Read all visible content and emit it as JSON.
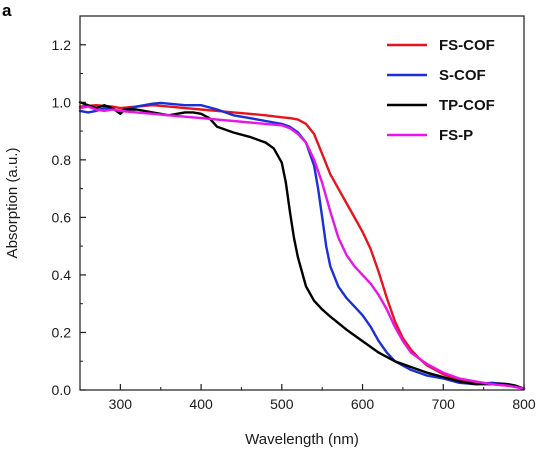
{
  "panel_label": "a",
  "chart_data": {
    "type": "line",
    "xlabel": "Wavelength (nm)",
    "ylabel": "Absorption (a.u.)",
    "xlim": [
      250,
      800
    ],
    "ylim": [
      0,
      1.3
    ],
    "xticks": [
      300,
      400,
      500,
      600,
      700,
      800
    ],
    "yticks": [
      0.0,
      0.2,
      0.4,
      0.6,
      0.8,
      1.0,
      1.2
    ],
    "xtick_labels": [
      "300",
      "400",
      "500",
      "600",
      "700",
      "800"
    ],
    "ytick_labels": [
      "0.0",
      "0.2",
      "0.4",
      "0.6",
      "0.8",
      "1.0",
      "1.2"
    ],
    "grid": false,
    "legend_position": "top-right",
    "series": [
      {
        "name": "FS-COF",
        "color": "#e8141c",
        "x": [
          250,
          270,
          290,
          300,
          320,
          340,
          360,
          380,
          400,
          420,
          440,
          460,
          480,
          500,
          510,
          520,
          530,
          540,
          550,
          560,
          570,
          580,
          590,
          600,
          610,
          620,
          630,
          640,
          650,
          660,
          670,
          680,
          700,
          720,
          740,
          760,
          780,
          800
        ],
        "y": [
          0.985,
          0.99,
          0.985,
          0.98,
          0.985,
          0.99,
          0.985,
          0.98,
          0.975,
          0.97,
          0.965,
          0.96,
          0.955,
          0.948,
          0.945,
          0.94,
          0.925,
          0.89,
          0.82,
          0.75,
          0.7,
          0.65,
          0.6,
          0.55,
          0.49,
          0.41,
          0.32,
          0.24,
          0.18,
          0.14,
          0.11,
          0.085,
          0.055,
          0.035,
          0.025,
          0.02,
          0.015,
          0.005
        ]
      },
      {
        "name": "S-COF",
        "color": "#1a2fd6",
        "x": [
          250,
          260,
          270,
          280,
          290,
          300,
          320,
          340,
          350,
          360,
          380,
          400,
          420,
          440,
          460,
          480,
          500,
          510,
          520,
          530,
          540,
          545,
          550,
          555,
          560,
          570,
          580,
          590,
          600,
          610,
          620,
          630,
          640,
          660,
          680,
          700,
          720,
          740,
          760,
          780,
          800
        ],
        "y": [
          0.97,
          0.965,
          0.97,
          0.98,
          0.975,
          0.97,
          0.985,
          0.995,
          0.998,
          0.995,
          0.99,
          0.99,
          0.975,
          0.955,
          0.945,
          0.935,
          0.925,
          0.915,
          0.895,
          0.86,
          0.78,
          0.7,
          0.6,
          0.5,
          0.43,
          0.36,
          0.32,
          0.29,
          0.26,
          0.22,
          0.17,
          0.13,
          0.1,
          0.07,
          0.05,
          0.04,
          0.025,
          0.02,
          0.025,
          0.02,
          0.005
        ]
      },
      {
        "name": "TP-COF",
        "color": "#000000",
        "x": [
          250,
          260,
          270,
          280,
          290,
          300,
          305,
          310,
          320,
          340,
          360,
          380,
          390,
          400,
          410,
          420,
          440,
          460,
          480,
          490,
          500,
          505,
          510,
          515,
          520,
          525,
          530,
          540,
          550,
          560,
          580,
          600,
          620,
          640,
          660,
          680,
          700,
          720,
          740,
          760,
          770,
          780,
          790,
          800
        ],
        "y": [
          1.0,
          0.99,
          0.98,
          0.99,
          0.98,
          0.96,
          0.975,
          0.975,
          0.975,
          0.965,
          0.955,
          0.965,
          0.965,
          0.96,
          0.945,
          0.915,
          0.895,
          0.88,
          0.86,
          0.84,
          0.79,
          0.72,
          0.62,
          0.53,
          0.46,
          0.41,
          0.36,
          0.31,
          0.28,
          0.255,
          0.21,
          0.17,
          0.13,
          0.1,
          0.08,
          0.06,
          0.045,
          0.03,
          0.02,
          0.02,
          0.022,
          0.02,
          0.015,
          0.005
        ]
      },
      {
        "name": "FS-P",
        "color": "#e815e8",
        "x": [
          250,
          260,
          270,
          280,
          290,
          300,
          320,
          340,
          360,
          380,
          400,
          420,
          440,
          460,
          480,
          500,
          510,
          520,
          530,
          540,
          550,
          560,
          570,
          580,
          590,
          600,
          610,
          620,
          630,
          640,
          650,
          660,
          680,
          700,
          720,
          740,
          760,
          780,
          800
        ],
        "y": [
          0.98,
          0.985,
          0.975,
          0.97,
          0.975,
          0.97,
          0.965,
          0.96,
          0.955,
          0.95,
          0.945,
          0.94,
          0.935,
          0.93,
          0.925,
          0.92,
          0.91,
          0.89,
          0.86,
          0.8,
          0.72,
          0.62,
          0.53,
          0.47,
          0.43,
          0.4,
          0.37,
          0.33,
          0.28,
          0.22,
          0.17,
          0.13,
          0.09,
          0.06,
          0.04,
          0.03,
          0.02,
          0.015,
          0.005
        ]
      }
    ]
  }
}
